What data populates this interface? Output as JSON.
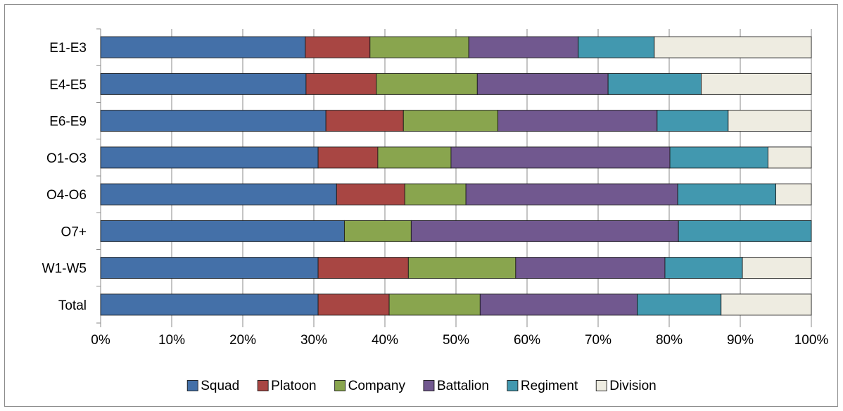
{
  "chart_data": {
    "type": "bar",
    "orientation": "horizontal",
    "stacked": "percent",
    "title": "",
    "xlabel": "",
    "ylabel": "",
    "xlim": [
      0,
      100
    ],
    "x_ticks": [
      "0%",
      "10%",
      "20%",
      "30%",
      "40%",
      "50%",
      "60%",
      "70%",
      "80%",
      "90%",
      "100%"
    ],
    "grid": "vertical",
    "legend_position": "bottom",
    "categories": [
      "E1-E3",
      "E4-E5",
      "E6-E9",
      "O1-O3",
      "O4-O6",
      "O7+",
      "W1-W5",
      "Total"
    ],
    "series": [
      {
        "name": "Squad",
        "color": "#4470A8",
        "values": [
          28.8,
          28.9,
          31.7,
          30.6,
          33.2,
          34.3,
          30.6,
          30.6
        ]
      },
      {
        "name": "Platoon",
        "color": "#A84643",
        "values": [
          9.1,
          9.9,
          10.9,
          8.4,
          9.6,
          0.0,
          12.7,
          10.0
        ]
      },
      {
        "name": "Company",
        "color": "#89A54E",
        "values": [
          13.9,
          14.2,
          13.3,
          10.3,
          8.6,
          9.4,
          15.1,
          12.8
        ]
      },
      {
        "name": "Battalion",
        "color": "#71588F",
        "values": [
          15.4,
          18.4,
          22.4,
          30.8,
          29.8,
          37.6,
          21.0,
          22.1
        ]
      },
      {
        "name": "Regiment",
        "color": "#4298AF",
        "values": [
          10.7,
          13.1,
          10.0,
          13.8,
          13.8,
          18.7,
          10.9,
          11.8
        ]
      },
      {
        "name": "Division",
        "color": "#EEECE1",
        "values": [
          22.1,
          15.5,
          11.7,
          6.1,
          5.0,
          0.0,
          9.7,
          12.7
        ]
      }
    ]
  }
}
